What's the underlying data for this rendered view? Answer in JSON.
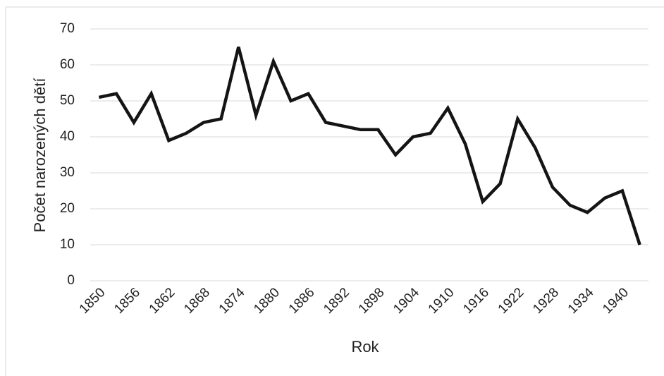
{
  "chart_data": {
    "type": "line",
    "categories": [
      "1850",
      null,
      "1856",
      null,
      "1862",
      null,
      "1868",
      null,
      "1874",
      null,
      "1880",
      null,
      "1886",
      null,
      "1892",
      null,
      "1898",
      null,
      "1904",
      null,
      "1910",
      null,
      "1916",
      null,
      "1922",
      null,
      "1928",
      null,
      "1934",
      null,
      "1940",
      null
    ],
    "series": [
      {
        "name": "Počet narozených dětí",
        "color": "#141414",
        "values": [
          51,
          52,
          44,
          52,
          39,
          41,
          44,
          45,
          65,
          46,
          61,
          50,
          52,
          44,
          43,
          42,
          42,
          35,
          40,
          41,
          48,
          38,
          22,
          27,
          45,
          37,
          26,
          21,
          19,
          23,
          25,
          10
        ]
      }
    ],
    "x_label": "Rok",
    "y_label": "Počet narozených dětí",
    "ylim": [
      0,
      70
    ],
    "yticks": [
      0,
      10,
      20,
      30,
      40,
      50,
      60,
      70
    ],
    "grid": true
  }
}
